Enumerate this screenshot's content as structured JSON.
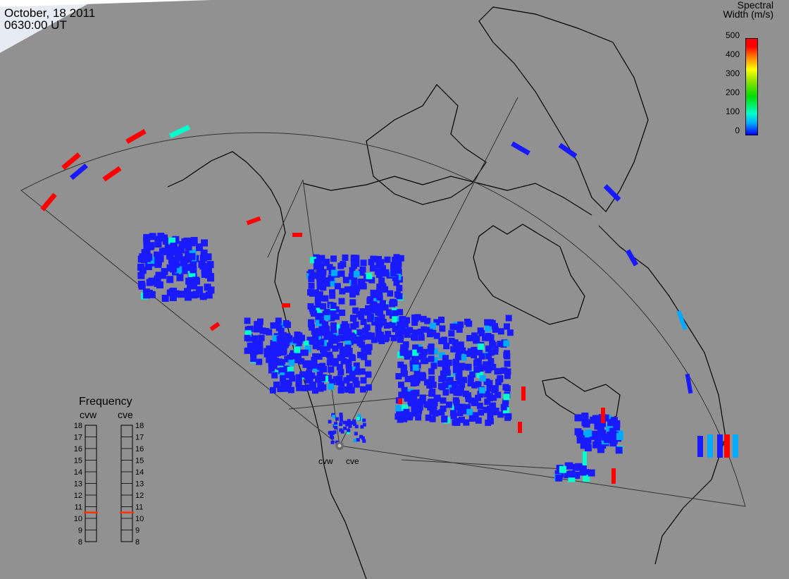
{
  "header": {
    "date": "October, 18 2011",
    "time": "0630:00 UT"
  },
  "colorbar": {
    "title_line1": "Spectral",
    "title_line2": "Width (m/s)",
    "ticks": [
      "500",
      "400",
      "300",
      "200",
      "100",
      "0"
    ]
  },
  "radars": {
    "west": "cvw",
    "east": "cve"
  },
  "frequency": {
    "title": "Frequency",
    "ticks": [
      "18",
      "17",
      "16",
      "15",
      "14",
      "13",
      "12",
      "11",
      "10",
      "9",
      "8"
    ],
    "cvw_value": 10.5,
    "cve_value": 10.5,
    "marker_color": "#ff3300"
  },
  "colors": {
    "background": "#919191",
    "low": "#1a1aff",
    "mid_low": "#00aaff",
    "mid": "#00ffcc",
    "high": "#ff0000"
  }
}
